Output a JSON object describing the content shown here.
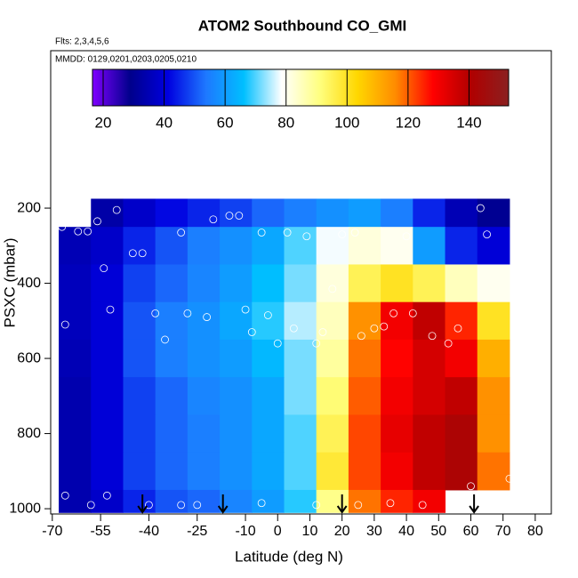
{
  "chart_data": {
    "type": "heatmap",
    "title": "ATOM2 Southbound CO_GMI",
    "notes": [
      "Flts: 2,3,4,5,6",
      "MMDD: 0129,0201,0203,0205,0210"
    ],
    "xlabel": "Latitude (deg N)",
    "ylabel": "PSXC (mbar)",
    "xlim": [
      -70.5,
      85
    ],
    "ylim": [
      1014,
      -219
    ],
    "xticks": [
      -70,
      -55,
      -40,
      -25,
      -10,
      0,
      10,
      20,
      30,
      40,
      50,
      60,
      70,
      80
    ],
    "yticks": [
      200,
      400,
      600,
      800,
      1000
    ],
    "x_edges": [
      -68,
      -58,
      -48,
      -38,
      -28,
      -18,
      -8,
      2,
      12,
      22,
      32,
      42,
      52,
      62,
      72
    ],
    "y_edges": [
      175,
      250,
      350,
      450,
      550,
      650,
      750,
      850,
      950,
      1010
    ],
    "z": [
      [
        null,
        33,
        38,
        42,
        45,
        48,
        52,
        55,
        58,
        60,
        55,
        45,
        35,
        30
      ],
      [
        35,
        38,
        45,
        50,
        55,
        58,
        62,
        70,
        78,
        82,
        80,
        60,
        45,
        40
      ],
      [
        36,
        40,
        48,
        52,
        56,
        60,
        66,
        72,
        82,
        95,
        100,
        95,
        85,
        80
      ],
      [
        36,
        40,
        50,
        55,
        58,
        62,
        68,
        75,
        85,
        115,
        130,
        138,
        125,
        100
      ],
      [
        35,
        40,
        50,
        55,
        58,
        60,
        65,
        72,
        88,
        118,
        128,
        135,
        130,
        110
      ],
      [
        34,
        40,
        48,
        52,
        56,
        58,
        62,
        72,
        92,
        120,
        130,
        135,
        138,
        115
      ],
      [
        34,
        40,
        48,
        52,
        55,
        58,
        62,
        70,
        95,
        122,
        132,
        138,
        142,
        115
      ],
      [
        34,
        40,
        48,
        52,
        55,
        58,
        62,
        70,
        98,
        122,
        130,
        138,
        142,
        118
      ],
      [
        34,
        38,
        45,
        50,
        52,
        56,
        60,
        68,
        90,
        118,
        125,
        130,
        null,
        null
      ]
    ],
    "colorbar": {
      "lim": [
        16.5,
        153
      ],
      "ticks": [
        20,
        40,
        60,
        80,
        100,
        120,
        140
      ],
      "colors": [
        "#7f00ff",
        "#00008b",
        "#0000e0",
        "#1e78ff",
        "#00bfff",
        "#ffffff",
        "#ffff80",
        "#ffd700",
        "#ff8c00",
        "#ff0000",
        "#b00000",
        "#8b2020"
      ]
    },
    "points": {
      "x": [
        -67,
        -66,
        -62,
        -59,
        -56,
        -54,
        -52,
        -50,
        -45,
        -42,
        -38,
        -35,
        -30,
        -28,
        -22,
        -20,
        -15,
        -12,
        -10,
        -8,
        -5,
        -3,
        0,
        3,
        5,
        9,
        12,
        14,
        17,
        20,
        24,
        26,
        30,
        33,
        36,
        40,
        42,
        48,
        53,
        56,
        60,
        63,
        65,
        72,
        -66,
        -58,
        -53,
        -40,
        -30,
        -25,
        -5,
        12,
        25,
        35,
        45
      ],
      "y": [
        250,
        510,
        262,
        262,
        235,
        360,
        470,
        205,
        320,
        320,
        480,
        550,
        265,
        480,
        490,
        230,
        220,
        220,
        470,
        530,
        265,
        485,
        560,
        265,
        520,
        275,
        560,
        530,
        415,
        270,
        265,
        540,
        520,
        515,
        480,
        275,
        480,
        540,
        560,
        520,
        940,
        200,
        270,
        920,
        965,
        990,
        965,
        990,
        990,
        990,
        985,
        990,
        990,
        985,
        990
      ]
    },
    "arrows": [
      -42,
      -17,
      20,
      61
    ]
  }
}
